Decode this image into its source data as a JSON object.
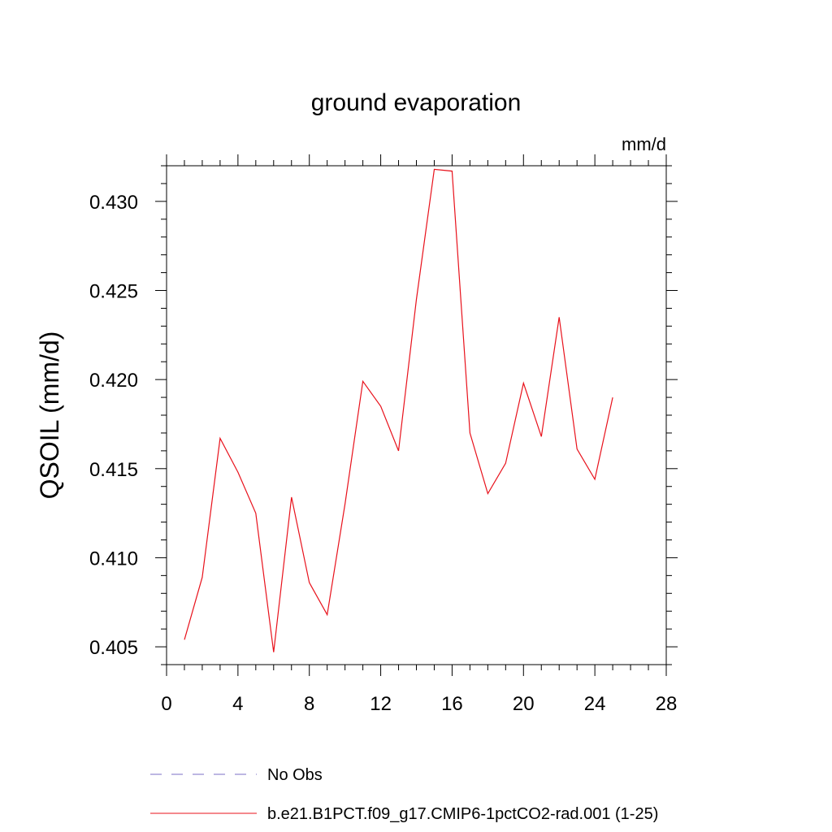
{
  "chart_data": {
    "type": "line",
    "title": "ground evaporation",
    "units": "mm/d",
    "ylabel": "QSOIL  (mm/d)",
    "xlabel": "",
    "xlim": [
      0,
      28
    ],
    "ylim": [
      0.404,
      0.432
    ],
    "x_ticks": [
      0,
      4,
      8,
      12,
      16,
      20,
      24,
      28
    ],
    "x_tick_labels": [
      "0",
      "4",
      "8",
      "12",
      "16",
      "20",
      "24",
      "28"
    ],
    "y_ticks": [
      0.405,
      0.41,
      0.415,
      0.42,
      0.425,
      0.43
    ],
    "y_tick_labels": [
      "0.405",
      "0.410",
      "0.415",
      "0.420",
      "0.425",
      "0.430"
    ],
    "grid": false,
    "legend_position": "bottom",
    "series": [
      {
        "name": "No Obs",
        "color": "#7b6fc4",
        "style": "dashed",
        "x": [],
        "y": []
      },
      {
        "name": "b.e21.B1PCT.f09_g17.CMIP6-1pctCO2-rad.001 (1-25)",
        "color": "#e8111b",
        "style": "solid",
        "x": [
          1,
          2,
          3,
          4,
          5,
          6,
          7,
          8,
          9,
          10,
          11,
          12,
          13,
          14,
          15,
          16,
          17,
          18,
          19,
          20,
          21,
          22,
          23,
          24,
          25
        ],
        "y": [
          0.4054,
          0.4089,
          0.4167,
          0.4148,
          0.4125,
          0.4047,
          0.4134,
          0.4086,
          0.4068,
          0.413,
          0.4199,
          0.4185,
          0.416,
          0.4245,
          0.4318,
          0.4317,
          0.417,
          0.4136,
          0.4153,
          0.4198,
          0.4168,
          0.4235,
          0.4161,
          0.4144,
          0.419
        ]
      }
    ]
  }
}
